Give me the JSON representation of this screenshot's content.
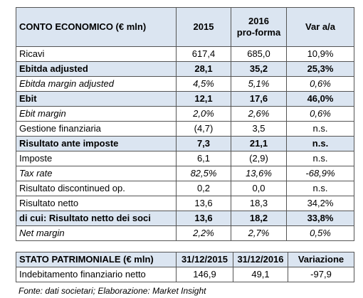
{
  "table1": {
    "header": [
      "CONTO ECONOMICO (€ mln)",
      "2015",
      "2016\npro-forma",
      "Var a/a"
    ],
    "rows": [
      [
        "Ricavi",
        "617,4",
        "685,0",
        "10,9%"
      ],
      [
        "Ebitda adjusted",
        "28,1",
        "35,2",
        "25,3%"
      ],
      [
        "Ebitda margin adjusted",
        "4,5%",
        "5,1%",
        "0,6%"
      ],
      [
        "Ebit",
        "12,1",
        "17,6",
        "46,0%"
      ],
      [
        "Ebit margin",
        "2,0%",
        "2,6%",
        "0,6%"
      ],
      [
        "Gestione finanziaria",
        "(4,7)",
        "3,5",
        "n.s."
      ],
      [
        "Risultato ante imposte",
        "7,3",
        "21,1",
        "n.s."
      ],
      [
        "Imposte",
        "6,1",
        "(2,9)",
        "n.s."
      ],
      [
        "Tax rate",
        "82,5%",
        "13,6%",
        "-68,9%"
      ],
      [
        "Risultato discontinued op.",
        "0,2",
        "0,0",
        "n.s."
      ],
      [
        "Risultato netto",
        "13,6",
        "18,3",
        "34,2%"
      ],
      [
        "di cui: Risultato netto dei soci",
        "13,6",
        "18,2",
        "33,8%"
      ],
      [
        "Net margin",
        "2,2%",
        "2,7%",
        "0,5%"
      ]
    ]
  },
  "table2": {
    "header": [
      "STATO PATRIMONIALE (€ mln)",
      "31/12/2015",
      "31/12/2016",
      "Variazione"
    ],
    "rows": [
      [
        "Indebitamento finanziario netto",
        "146,9",
        "49,1",
        "-97,9"
      ]
    ]
  },
  "footnote": "Fonte: dati societari; Elaborazione: Market Insight"
}
